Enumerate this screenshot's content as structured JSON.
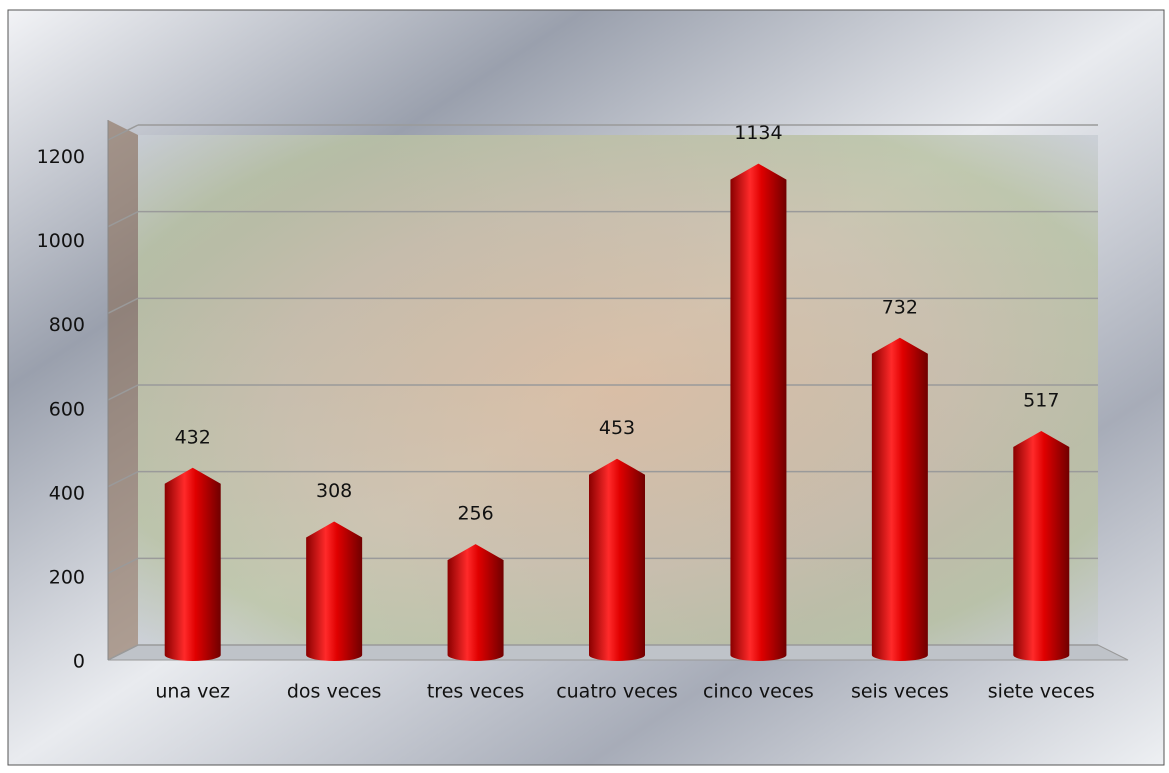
{
  "chart_data": {
    "type": "bar",
    "categories": [
      "una vez",
      "dos veces",
      "tres veces",
      "cuatro veces",
      "cinco veces",
      "seis veces",
      "siete veces"
    ],
    "values": [
      432,
      308,
      256,
      453,
      1134,
      732,
      517
    ],
    "color": "#e00000",
    "ylim": [
      0,
      1200
    ],
    "yticks": [
      0,
      200,
      400,
      600,
      800,
      1000,
      1200
    ],
    "grid": true
  }
}
